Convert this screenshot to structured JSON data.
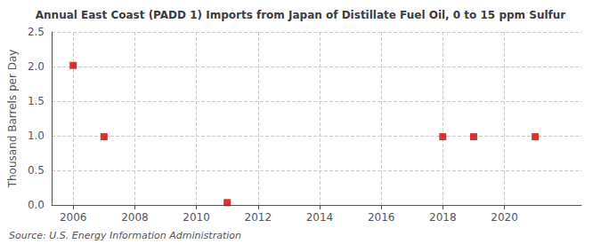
{
  "chart_data": {
    "type": "scatter",
    "title": "Annual East Coast (PADD 1) Imports from Japan of Distillate Fuel Oil, 0 to 15 ppm Sulfur",
    "ylabel": "Thousand Barrels per Day",
    "annotations": [
      "Source: U.S. Energy Information Administration"
    ],
    "x": [
      2006,
      2007,
      2011,
      2018,
      2019,
      2021
    ],
    "values": [
      2.016,
      0.986,
      0.034,
      0.986,
      0.986,
      0.986
    ],
    "color": "#cc0000",
    "marker": "square",
    "xlim": [
      2005.3,
      2022.5
    ],
    "xticks": [
      2006,
      2008,
      2010,
      2012,
      2014,
      2016,
      2018,
      2020
    ],
    "ylim": [
      0.0,
      2.5
    ],
    "yticks": [
      {
        "value": 0.0,
        "label": "0.0"
      },
      0.5,
      {
        "value": 1.0,
        "label": "1.0"
      },
      1.5,
      {
        "value": 2.0,
        "label": "2.0"
      },
      2.5
    ],
    "grid": true
  }
}
